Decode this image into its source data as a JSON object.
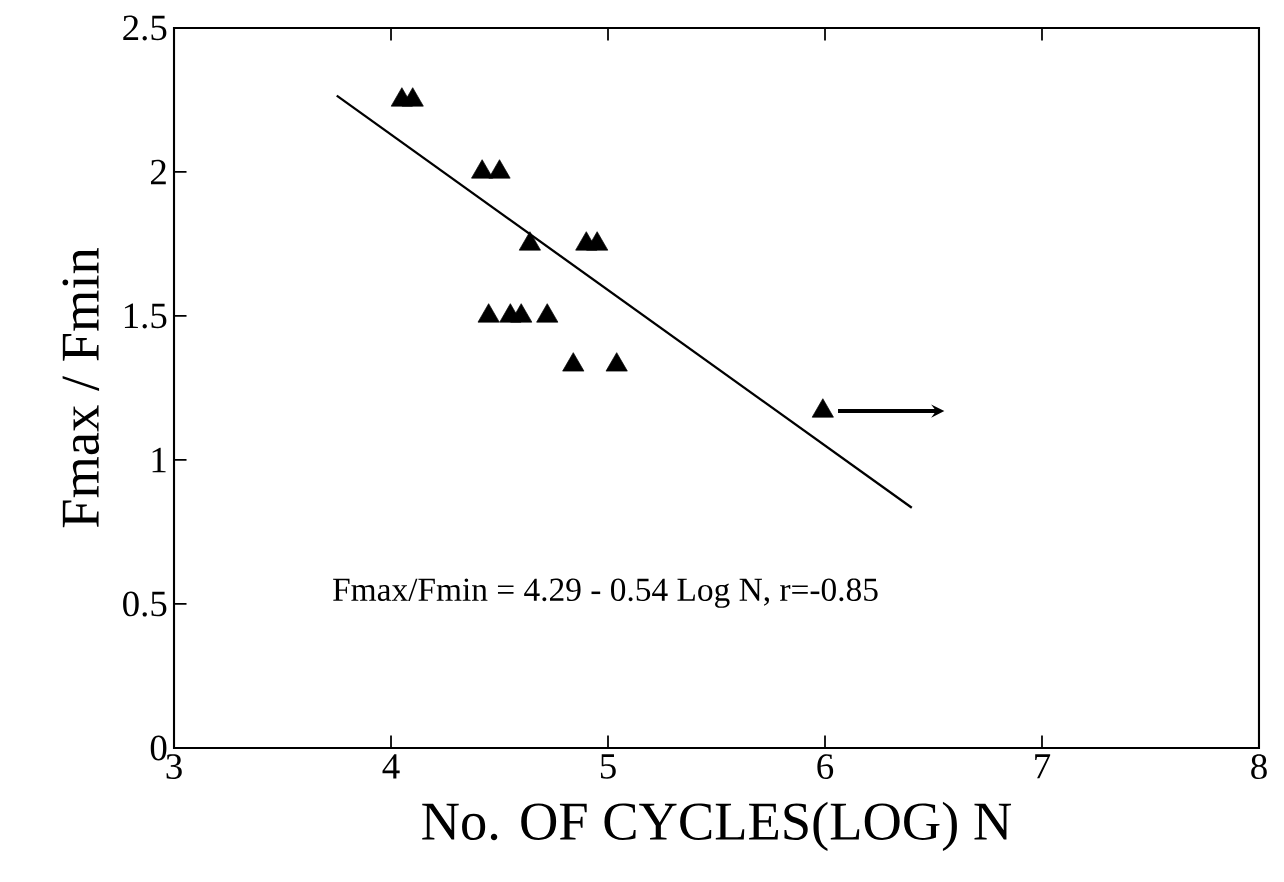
{
  "chart_data": {
    "type": "scatter",
    "xlabel": "No. OF CYCLES(LOG)  N",
    "ylabel": "Fmax / Fmin",
    "xlim": [
      3,
      8
    ],
    "ylim": [
      0,
      2.5
    ],
    "xticks": [
      3,
      4,
      5,
      6,
      7,
      8
    ],
    "yticks": [
      0,
      0.5,
      1,
      1.5,
      2,
      2.5
    ],
    "marker": "triangle",
    "grid": false,
    "series": [
      {
        "color": "#000000",
        "x": [
          4.05,
          4.1,
          4.42,
          4.5,
          4.64,
          4.9,
          4.95,
          4.45,
          4.55,
          4.6,
          4.72,
          4.84,
          5.04,
          5.99
        ],
        "values": [
          2.25,
          2.25,
          2.0,
          2.0,
          1.75,
          1.75,
          1.75,
          1.5,
          1.5,
          1.5,
          1.5,
          1.33,
          1.33,
          1.17
        ]
      },
      {
        "type": "line",
        "color": "#000000",
        "marker": "none",
        "x": [
          3.75,
          6.4
        ],
        "values": [
          2.265,
          0.834
        ]
      }
    ],
    "annotations": [
      "Fmax/Fmin = 4.29 - 0.54 Log N,  r=-0.85"
    ]
  }
}
